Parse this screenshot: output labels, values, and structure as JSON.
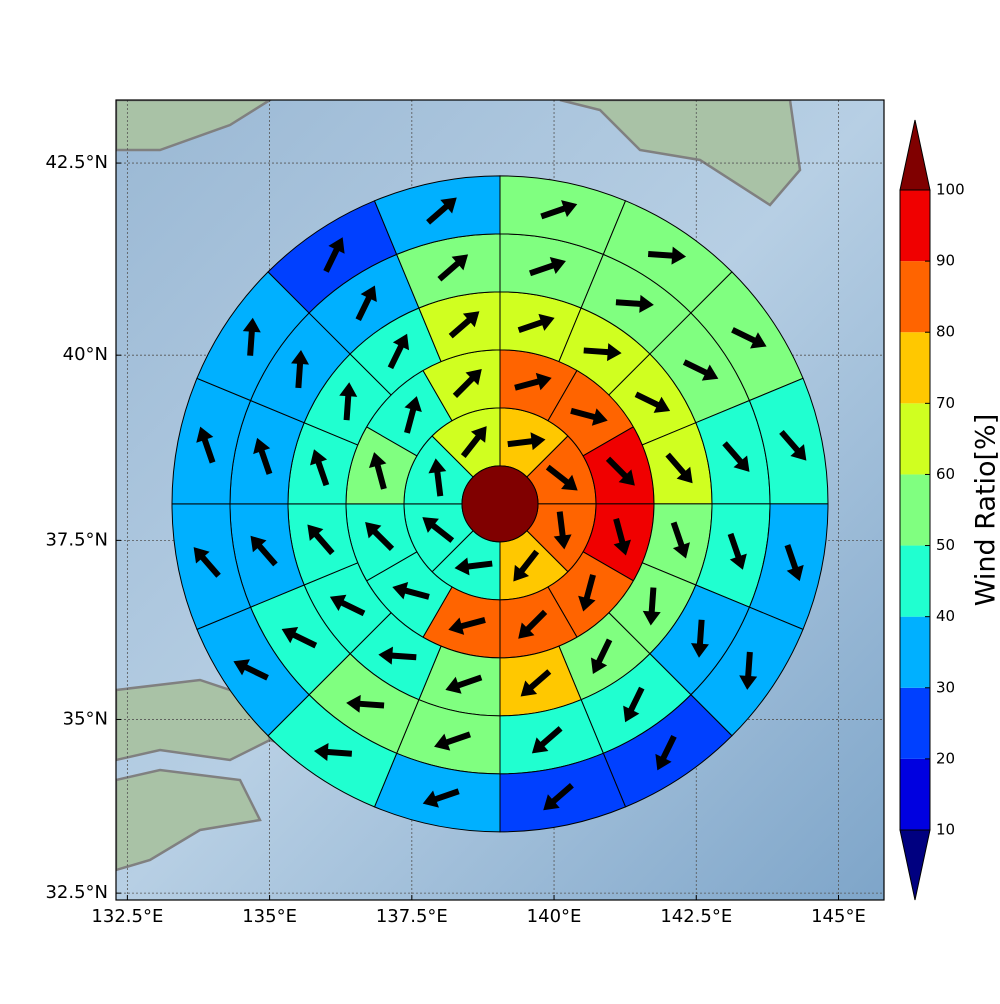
{
  "chart_data": {
    "type": "polar-sector-map",
    "xlim": [
      132.3,
      145.8
    ],
    "ylim": [
      32.4,
      43.3
    ],
    "xticks": [
      {
        "value": 132.5,
        "label": "132.5°E"
      },
      {
        "value": 135,
        "label": "135°E"
      },
      {
        "value": 137.5,
        "label": "137.5°E"
      },
      {
        "value": 140,
        "label": "140°E"
      },
      {
        "value": 142.5,
        "label": "142.5°E"
      },
      {
        "value": 145,
        "label": "145°E"
      }
    ],
    "yticks": [
      {
        "value": 32.5,
        "label": "32.5°N"
      },
      {
        "value": 35,
        "label": "35°N"
      },
      {
        "value": 37.5,
        "label": "37.5°N"
      },
      {
        "value": 40,
        "label": "40°N"
      },
      {
        "value": 42.5,
        "label": "42.5°N"
      }
    ],
    "grid": true,
    "center_lon": 139.05,
    "center_lat": 38.0,
    "center_value": 105,
    "rings": [
      {
        "values": [
          75,
          85,
          85,
          75,
          45,
          45,
          45,
          65
        ],
        "directions": [
          83,
          128,
          173,
          218,
          263,
          308,
          353,
          38
        ]
      },
      {
        "values": [
          85,
          85,
          95,
          95,
          85,
          85,
          85,
          45,
          45,
          55,
          45,
          65
        ],
        "directions": [
          75,
          105,
          135,
          165,
          195,
          225,
          255,
          285,
          315,
          345,
          15,
          45
        ]
      },
      {
        "values": [
          65,
          65,
          65,
          65,
          55,
          55,
          55,
          75,
          55,
          45,
          45,
          45,
          45,
          45,
          45,
          65
        ],
        "directions": [
          71,
          94,
          116,
          139,
          161,
          184,
          206,
          229,
          251,
          274,
          296,
          319,
          341,
          4,
          26,
          49
        ]
      },
      {
        "values": [
          55,
          55,
          55,
          45,
          45,
          35,
          45,
          45,
          55,
          55,
          45,
          35,
          35,
          35,
          35,
          55
        ],
        "directions": [
          71,
          94,
          116,
          139,
          161,
          184,
          206,
          229,
          251,
          274,
          296,
          319,
          341,
          4,
          26,
          49
        ]
      },
      {
        "values": [
          55,
          55,
          55,
          45,
          35,
          35,
          25,
          25,
          35,
          45,
          35,
          35,
          35,
          35,
          25,
          35
        ],
        "directions": [
          71,
          94,
          116,
          139,
          161,
          184,
          206,
          229,
          251,
          274,
          296,
          319,
          341,
          4,
          26,
          49
        ]
      }
    ],
    "colorbar": {
      "label": "Wind Ratio[%]",
      "ticks": [
        10,
        20,
        30,
        40,
        50,
        60,
        70,
        80,
        90,
        100
      ],
      "colors": [
        "#0000e0",
        "#0040ff",
        "#00b0ff",
        "#20ffd0",
        "#80ff80",
        "#d0ff20",
        "#ffc800",
        "#ff6400",
        "#f00000"
      ],
      "over_color": "#800000",
      "under_color": "#000080"
    }
  }
}
